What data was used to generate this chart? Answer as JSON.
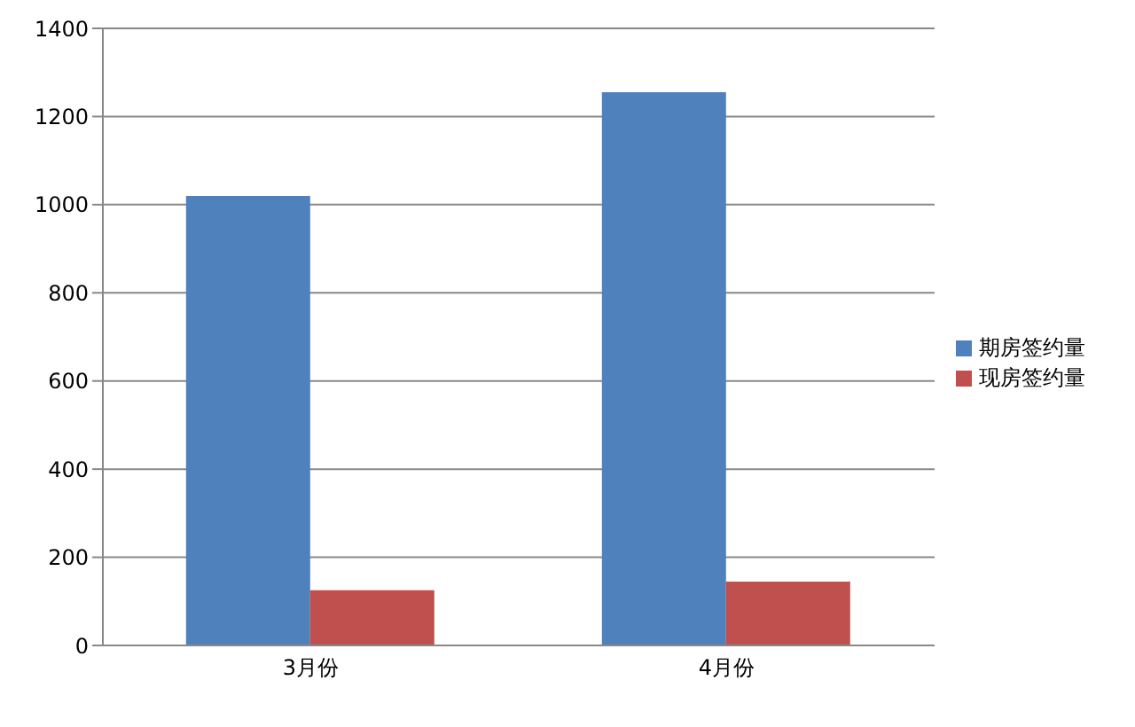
{
  "chart_data": {
    "type": "bar",
    "categories": [
      "3月份",
      "4月份"
    ],
    "series": [
      {
        "name": "期房签约量",
        "color": "#4f81bd",
        "values": [
          1020,
          1255
        ]
      },
      {
        "name": "现房签约量",
        "color": "#c0504d",
        "values": [
          125,
          145
        ]
      }
    ],
    "ylim": [
      0,
      1400
    ],
    "yticks": [
      0,
      200,
      400,
      600,
      800,
      1000,
      1200,
      1400
    ],
    "grid": "y",
    "legend": "right"
  }
}
